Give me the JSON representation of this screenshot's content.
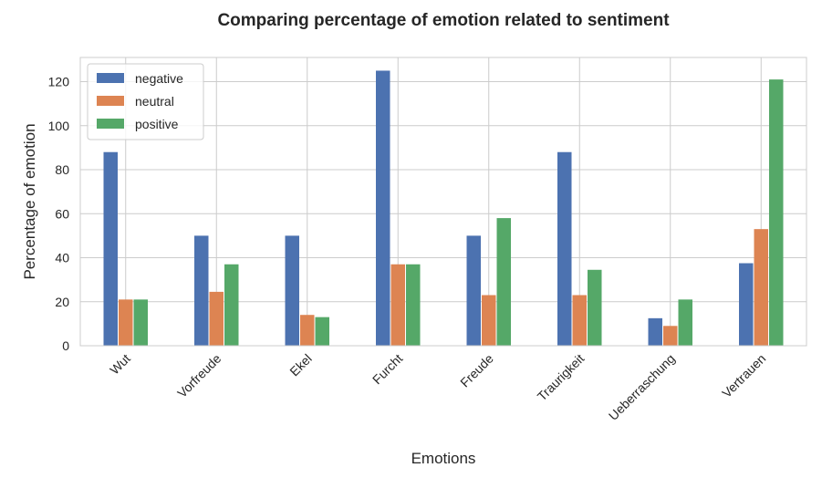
{
  "chart_data": {
    "type": "bar",
    "title": "Comparing percentage of emotion related to sentiment",
    "xlabel": "Emotions",
    "ylabel": "Percentage of emotion",
    "categories": [
      "Wut",
      "Vorfreude",
      "Ekel",
      "Furcht",
      "Freude",
      "Traurigkeit",
      "Ueberraschung",
      "Vertrauen"
    ],
    "series": [
      {
        "name": "negative",
        "color": "#4c72b0",
        "values": [
          88,
          50,
          50,
          125,
          50,
          88,
          12.5,
          37.5
        ]
      },
      {
        "name": "neutral",
        "color": "#dd8452",
        "values": [
          21,
          24.5,
          14,
          37,
          23,
          23,
          9,
          53
        ]
      },
      {
        "name": "positive",
        "color": "#55a868",
        "values": [
          21,
          37,
          13,
          37,
          58,
          34.5,
          21,
          121
        ]
      }
    ],
    "ylim": [
      0,
      131
    ],
    "yticks": [
      0,
      20,
      40,
      60,
      80,
      100,
      120
    ],
    "grid": true,
    "legend_position": "top-left"
  }
}
